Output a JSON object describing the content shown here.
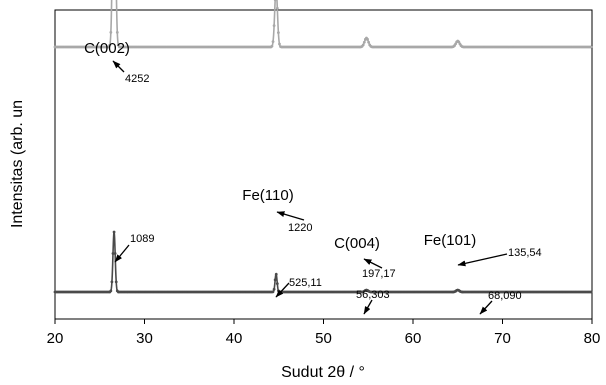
{
  "chart_data": {
    "type": "line",
    "xlabel": "Sudut 2θ / °",
    "ylabel": "Intensitas (arb. un",
    "xlim": [
      20,
      80
    ],
    "xticks": [
      20,
      30,
      40,
      50,
      60,
      70,
      80
    ],
    "grid": false,
    "legend": "none",
    "series": [
      {
        "color": "#a8a8a8",
        "marker": "circle",
        "baseline": 272,
        "peaks": [
          {
            "x": 26.6,
            "height": 213,
            "width": 0.22
          },
          {
            "x": 44.7,
            "height": 58,
            "width": 0.22
          },
          {
            "x": 54.8,
            "height": 9,
            "width": 0.3
          },
          {
            "x": 65.0,
            "height": 6,
            "width": 0.3
          }
        ]
      },
      {
        "color": "#4a4a4a",
        "marker": "circle",
        "baseline": 27,
        "peaks": [
          {
            "x": 26.6,
            "height": 60,
            "width": 0.18
          },
          {
            "x": 44.7,
            "height": 18,
            "width": 0.16
          },
          {
            "x": 54.8,
            "height": 2,
            "width": 0.25
          },
          {
            "x": 65.0,
            "height": 2,
            "width": 0.25
          }
        ]
      }
    ],
    "peak_labels": [
      {
        "text": "C(002)",
        "x": 26.6
      },
      {
        "text": "Fe(110)",
        "x": 44.7
      },
      {
        "text": "C(004)",
        "x": 54.8
      },
      {
        "text": "Fe(101)",
        "x": 65.0
      }
    ],
    "value_labels": [
      {
        "text": "4252",
        "x": 26.6
      },
      {
        "text": "1089",
        "x": 26.6
      },
      {
        "text": "1220",
        "x": 44.7
      },
      {
        "text": "525,11",
        "x": 44.7
      },
      {
        "text": "197,17",
        "x": 54.8
      },
      {
        "text": "56,303",
        "x": 54.8
      },
      {
        "text": "135,54",
        "x": 65.0
      },
      {
        "text": "68,090",
        "x": 65.0
      }
    ]
  }
}
